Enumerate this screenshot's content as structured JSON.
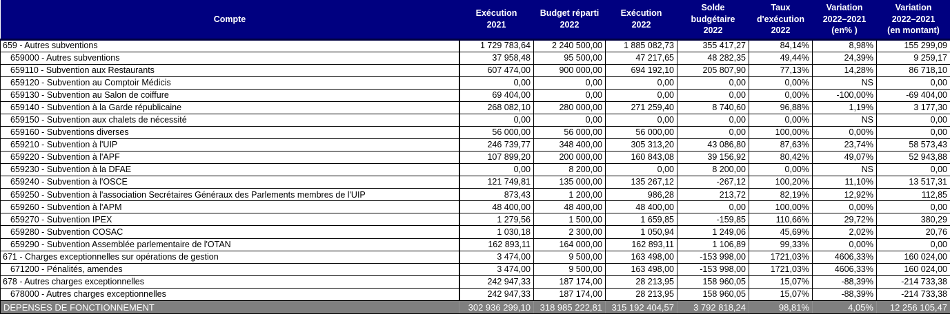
{
  "colors": {
    "header_bg": "#000080",
    "header_text": "#ffffff",
    "header_border": "#000040",
    "grid": "#000000",
    "footer_bg": "#7f7f7f",
    "footer_text": "#ffffff",
    "footer_grid": "#8f8f8f",
    "row_bg": "#ffffff",
    "row_text": "#000000"
  },
  "table": {
    "columns": [
      {
        "key": "compte",
        "lines": [
          "Compte"
        ]
      },
      {
        "key": "execution-2021",
        "lines": [
          "Exécution",
          "2021"
        ]
      },
      {
        "key": "budget-reparti-2022",
        "lines": [
          "Budget réparti",
          "2022"
        ]
      },
      {
        "key": "execution-2022",
        "lines": [
          "Exécution",
          "2022"
        ]
      },
      {
        "key": "solde-budgetaire-2022",
        "lines": [
          "Solde",
          "budgétaire",
          "2022"
        ]
      },
      {
        "key": "taux-execution-2022",
        "lines": [
          "Taux",
          "d'exécution",
          "2022"
        ]
      },
      {
        "key": "variation-2022-2021-pct",
        "lines": [
          "Variation",
          "2022–2021",
          "(en% )"
        ]
      },
      {
        "key": "variation-2022-2021-montant",
        "lines": [
          "Variation",
          "2022–2021",
          "(en montant)"
        ]
      }
    ],
    "rows": [
      {
        "label": "659 - Autres subventions",
        "level": 0,
        "values": [
          "1 729 783,64",
          "2 240 500,00",
          "1 885 082,73",
          "355 417,27",
          "84,14%",
          "8,98%",
          "155 299,09"
        ]
      },
      {
        "label": "659000 - Autres subventions",
        "level": 1,
        "values": [
          "37 958,48",
          "95 500,00",
          "47 217,65",
          "48 282,35",
          "49,44%",
          "24,39%",
          "9 259,17"
        ]
      },
      {
        "label": "659110 - Subvention aux Restaurants",
        "level": 1,
        "values": [
          "607 474,00",
          "900 000,00",
          "694 192,10",
          "205 807,90",
          "77,13%",
          "14,28%",
          "86 718,10"
        ]
      },
      {
        "label": "659120 - Subvention au Comptoir Médicis",
        "level": 1,
        "values": [
          "0,00",
          "0,00",
          "0,00",
          "0,00",
          "0,00%",
          "NS",
          "0,00"
        ]
      },
      {
        "label": "659130 - Subvention au Salon de coiffure",
        "level": 1,
        "values": [
          "69 404,00",
          "0,00",
          "0,00",
          "0,00",
          "0,00%",
          "-100,00%",
          "-69 404,00"
        ]
      },
      {
        "label": "659140 - Subvention à la Garde républicaine",
        "level": 1,
        "values": [
          "268 082,10",
          "280 000,00",
          "271 259,40",
          "8 740,60",
          "96,88%",
          "1,19%",
          "3 177,30"
        ]
      },
      {
        "label": "659150 - Subvention aux chalets de nécessité",
        "level": 1,
        "values": [
          "0,00",
          "0,00",
          "0,00",
          "0,00",
          "0,00%",
          "NS",
          "0,00"
        ]
      },
      {
        "label": "659160 - Subventions diverses",
        "level": 1,
        "values": [
          "56 000,00",
          "56 000,00",
          "56 000,00",
          "0,00",
          "100,00%",
          "0,00%",
          "0,00"
        ]
      },
      {
        "label": "659210 - Subvention à l'UIP",
        "level": 1,
        "values": [
          "246 739,77",
          "348 400,00",
          "305 313,20",
          "43 086,80",
          "87,63%",
          "23,74%",
          "58 573,43"
        ]
      },
      {
        "label": "659220 - Subvention à l'APF",
        "level": 1,
        "values": [
          "107 899,20",
          "200 000,00",
          "160 843,08",
          "39 156,92",
          "80,42%",
          "49,07%",
          "52 943,88"
        ]
      },
      {
        "label": "659230 - Subvention à la DFAE",
        "level": 1,
        "values": [
          "0,00",
          "8 200,00",
          "0,00",
          "8 200,00",
          "0,00%",
          "NS",
          "0,00"
        ]
      },
      {
        "label": "659240 - Subvention à l'OSCE",
        "level": 1,
        "values": [
          "121 749,81",
          "135 000,00",
          "135 267,12",
          "-267,12",
          "100,20%",
          "11,10%",
          "13 517,31"
        ]
      },
      {
        "label": "659250 - Subvention à l'association Secrétaires Généraux des Parlements membres de l'UIP",
        "level": 1,
        "values": [
          "873,43",
          "1 200,00",
          "986,28",
          "213,72",
          "82,19%",
          "12,92%",
          "112,85"
        ]
      },
      {
        "label": "659260 - Subvention à l'APM",
        "level": 1,
        "values": [
          "48 400,00",
          "48 400,00",
          "48 400,00",
          "0,00",
          "100,00%",
          "0,00%",
          "0,00"
        ]
      },
      {
        "label": "659270 - Subvention IPEX",
        "level": 1,
        "values": [
          "1 279,56",
          "1 500,00",
          "1 659,85",
          "-159,85",
          "110,66%",
          "29,72%",
          "380,29"
        ]
      },
      {
        "label": "659280 - Subvention COSAC",
        "level": 1,
        "values": [
          "1 030,18",
          "2 300,00",
          "1 050,94",
          "1 249,06",
          "45,69%",
          "2,02%",
          "20,76"
        ]
      },
      {
        "label": "659290 - Subvention Assemblée parlementaire de l'OTAN",
        "level": 1,
        "values": [
          "162 893,11",
          "164 000,00",
          "162 893,11",
          "1 106,89",
          "99,33%",
          "0,00%",
          "0,00"
        ]
      },
      {
        "label": "671 - Charges exceptionnelles sur opérations de gestion",
        "level": 0,
        "values": [
          "3 474,00",
          "9 500,00",
          "163 498,00",
          "-153 998,00",
          "1721,03%",
          "4606,33%",
          "160 024,00"
        ]
      },
      {
        "label": "671200 - Pénalités, amendes",
        "level": 1,
        "values": [
          "3 474,00",
          "9 500,00",
          "163 498,00",
          "-153 998,00",
          "1721,03%",
          "4606,33%",
          "160 024,00"
        ]
      },
      {
        "label": "678 - Autres charges exceptionnelles",
        "level": 0,
        "values": [
          "242 947,33",
          "187 174,00",
          "28 213,95",
          "158 960,05",
          "15,07%",
          "-88,39%",
          "-214 733,38"
        ]
      },
      {
        "label": "678000 - Autres charges exceptionnelles",
        "level": 1,
        "values": [
          "242 947,33",
          "187 174,00",
          "28 213,95",
          "158 960,05",
          "15,07%",
          "-88,39%",
          "-214 733,38"
        ]
      }
    ],
    "footer": {
      "label": "DEPENSES DE FONCTIONNEMENT",
      "values": [
        "302 936 299,10",
        "318 985 222,81",
        "315 192 404,57",
        "3 792 818,24",
        "98,81%",
        "4,05%",
        "12 256 105,47"
      ]
    }
  }
}
